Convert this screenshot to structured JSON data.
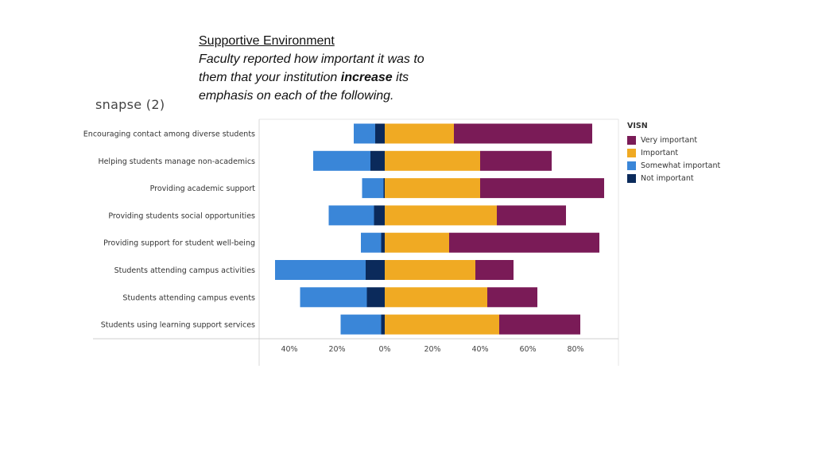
{
  "header": {
    "line1": "Supportive Environment",
    "line2a": "Faculty reported how important it was to",
    "line2b_pre": "them that your institution ",
    "line2b_bold": "increase",
    "line2b_post": " its",
    "line2c": "emphasis on each of the following."
  },
  "logo_text": "snapse (2)",
  "legend": {
    "title": "VISN",
    "items": [
      {
        "label": "Very important",
        "color": "#7a1b57"
      },
      {
        "label": "Important",
        "color": "#f0aa23"
      },
      {
        "label": "Somewhat important",
        "color": "#3a86d8"
      },
      {
        "label": "Not important",
        "color": "#0b2a5b"
      }
    ]
  },
  "chart_data": {
    "type": "bar",
    "orientation": "horizontal-diverging",
    "categories": [
      "Encouraging contact among diverse students",
      "Helping students manage non-academics",
      "Providing academic support",
      "Providing students social opportunities",
      "Providing support for student well-being",
      "Students attending campus activities",
      "Students attending campus events",
      "Students using learning support services"
    ],
    "series": [
      {
        "name": "Not important",
        "side": "negative",
        "color": "#0b2a5b",
        "values": [
          4,
          6,
          0.5,
          4.5,
          1.5,
          8,
          7.5,
          1.5
        ]
      },
      {
        "name": "Somewhat important",
        "side": "negative",
        "color": "#3a86d8",
        "values": [
          9,
          24,
          9,
          19,
          8.5,
          38,
          28,
          17
        ]
      },
      {
        "name": "Important",
        "side": "positive",
        "color": "#f0aa23",
        "values": [
          29,
          40,
          40,
          47,
          27,
          38,
          43,
          48
        ]
      },
      {
        "name": "Very important",
        "side": "positive",
        "color": "#7a1b57",
        "values": [
          58,
          30,
          52,
          29,
          63,
          16,
          21,
          34
        ]
      }
    ],
    "xlim": [
      -53,
      98
    ],
    "x_ticks": [
      -40,
      -20,
      0,
      20,
      40,
      60,
      80
    ],
    "x_tick_labels": [
      "40%",
      "20%",
      "0%",
      "20%",
      "40%",
      "60%",
      "80%"
    ],
    "grid": false,
    "legend_position": "right"
  }
}
